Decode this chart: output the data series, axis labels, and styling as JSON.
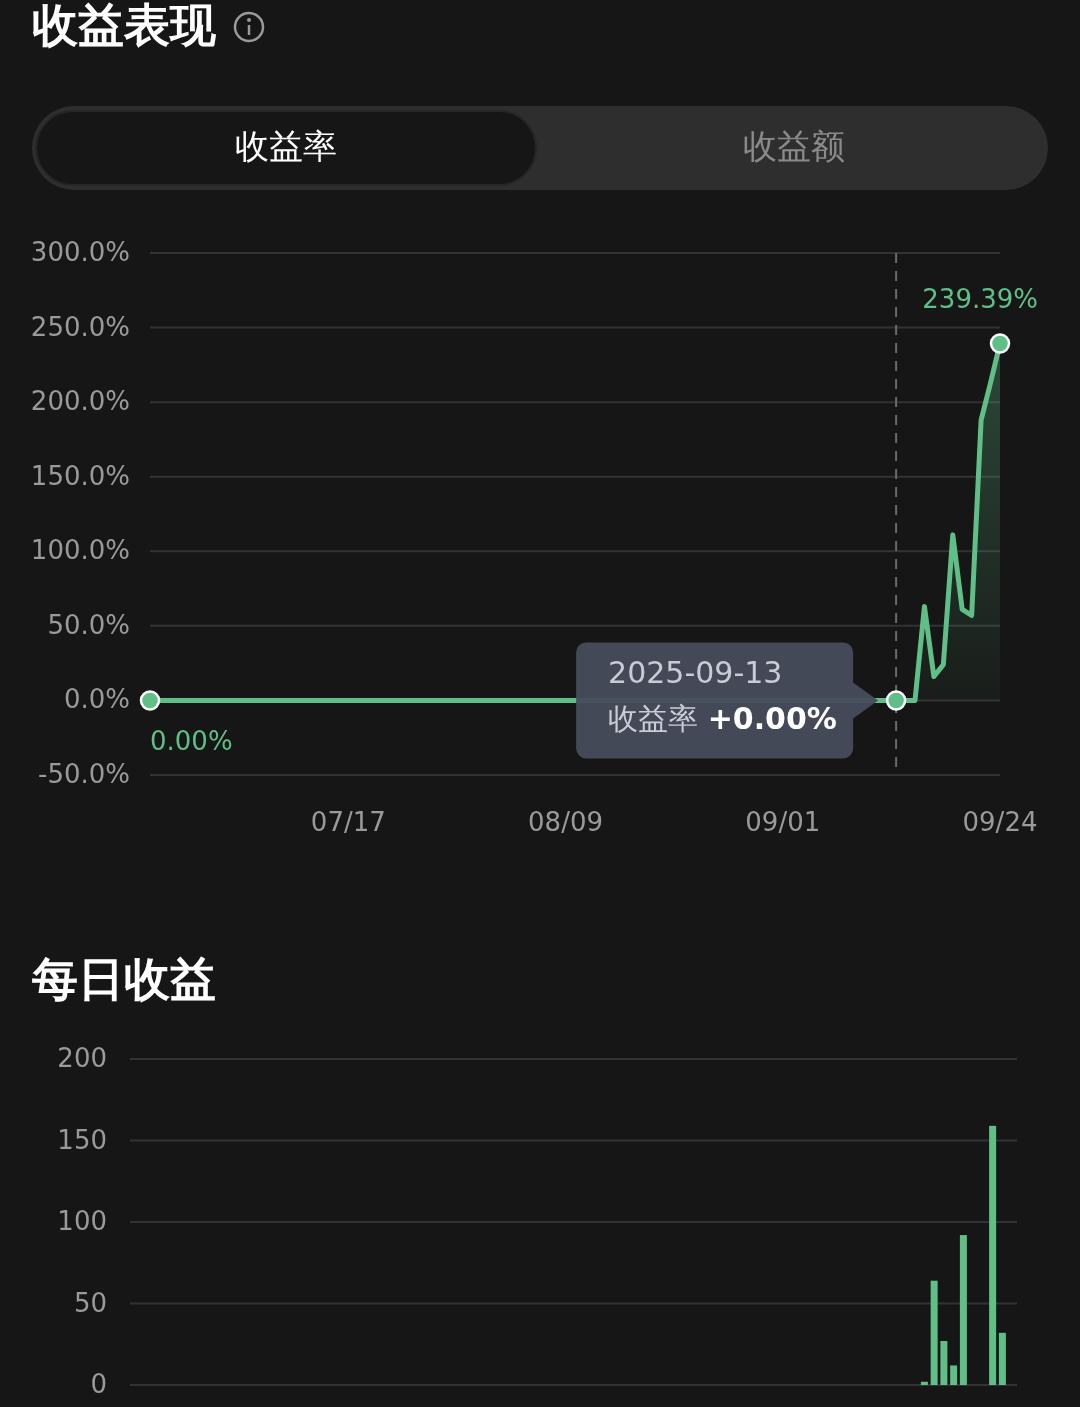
{
  "chart_data": [
    {
      "type": "area",
      "title": "收益表现",
      "annotations": [
        "收益率",
        "收益额",
        {
          "text": "0.00%",
          "x": "2025-06-26",
          "y": 0
        },
        {
          "text": "239.39%",
          "x": "2025-09-24",
          "y": 239.39
        },
        "2025-09-13",
        "收益率 **+0.00%**"
      ],
      "series": [
        {
          "type": "area",
          "color": "#5fbf86",
          "x": [
            "2025-06-26",
            "2025-09-13",
            "2025-09-14",
            "2025-09-15",
            "2025-09-16",
            "2025-09-17",
            "2025-09-18",
            "2025-09-19",
            "2025-09-20",
            "2025-09-21",
            "2025-09-22",
            "2025-09-23",
            "2025-09-24"
          ],
          "values": [
            0,
            0,
            0,
            0,
            63,
            16,
            24,
            111,
            61,
            57,
            188,
            213,
            239.39
          ]
        },
        {
          "type": "scatter",
          "color": "#5fbf86",
          "marker": "circle",
          "x": [
            "2025-06-26",
            "2025-09-13",
            "2025-09-24"
          ],
          "values": [
            0,
            0,
            239.39
          ]
        }
      ],
      "xlim": [
        "2025-06-26",
        "2025-09-24"
      ],
      "xticks": [
        {
          "value": "2025-07-17",
          "label": "07/17"
        },
        {
          "value": "2025-08-09",
          "label": "08/09"
        },
        {
          "value": "2025-09-01",
          "label": "09/01"
        },
        {
          "value": "2025-09-24",
          "label": "09/24"
        }
      ],
      "ylim": [
        -50,
        300
      ],
      "yticks": [
        {
          "value": -50,
          "label": "-50.0%"
        },
        {
          "value": 0,
          "label": "0.0%"
        },
        {
          "value": 50,
          "label": "50.0%"
        },
        {
          "value": 100,
          "label": "100.0%"
        },
        {
          "value": 150,
          "label": "150.0%"
        },
        {
          "value": 200,
          "label": "200.0%"
        },
        {
          "value": 250,
          "label": "250.0%"
        },
        {
          "value": 300,
          "label": "300.0%"
        }
      ],
      "ref_lines": [
        {
          "axis": "x",
          "value": "2025-09-13",
          "color": "#6a6a6a",
          "line_style": "dashed"
        }
      ],
      "grid": "y"
    },
    {
      "type": "bar",
      "title": "每日收益",
      "color": "#5fbf86",
      "tick_labels": "y",
      "categories": [
        null,
        null,
        null,
        null,
        null,
        null,
        null,
        null,
        null,
        null,
        null,
        null,
        null,
        null,
        null,
        null,
        null,
        null,
        null,
        null,
        null,
        null,
        null,
        null,
        null,
        null,
        null,
        null,
        null,
        null,
        null,
        null,
        null,
        null,
        null,
        null,
        null,
        null,
        null,
        null,
        null,
        null,
        null,
        null,
        null,
        null,
        null,
        null,
        null,
        null,
        null,
        null,
        null,
        null,
        null,
        null,
        null,
        null,
        null,
        null,
        null,
        null,
        null,
        null,
        null,
        null,
        null,
        null,
        null,
        null,
        null,
        null,
        null,
        null,
        null,
        null,
        null,
        null,
        null,
        null,
        null,
        null,
        null,
        null,
        null,
        null,
        null,
        null,
        null,
        null,
        null
      ],
      "values": [
        0,
        0,
        0,
        0,
        0,
        0,
        0,
        0,
        0,
        0,
        0,
        0,
        0,
        0,
        0,
        0,
        0,
        0,
        0,
        0,
        0,
        0,
        0,
        0,
        0,
        0,
        0,
        0,
        0,
        0,
        0,
        0,
        0,
        0,
        0,
        0,
        0,
        0,
        0,
        0,
        0,
        0,
        0,
        0,
        0,
        0,
        0,
        0,
        0,
        0,
        0,
        0,
        0,
        0,
        0,
        0,
        0,
        0,
        0,
        0,
        0,
        0,
        0,
        0,
        0,
        0,
        0,
        0,
        0,
        0,
        0,
        0,
        0,
        0,
        0,
        0,
        0,
        0,
        0,
        0,
        0,
        2,
        64,
        27,
        12,
        92,
        null,
        null,
        159,
        32,
        0
      ],
      "ylim": [
        0,
        200
      ],
      "yticks": [
        0,
        50,
        100,
        150,
        200
      ],
      "grid": "y"
    }
  ]
}
